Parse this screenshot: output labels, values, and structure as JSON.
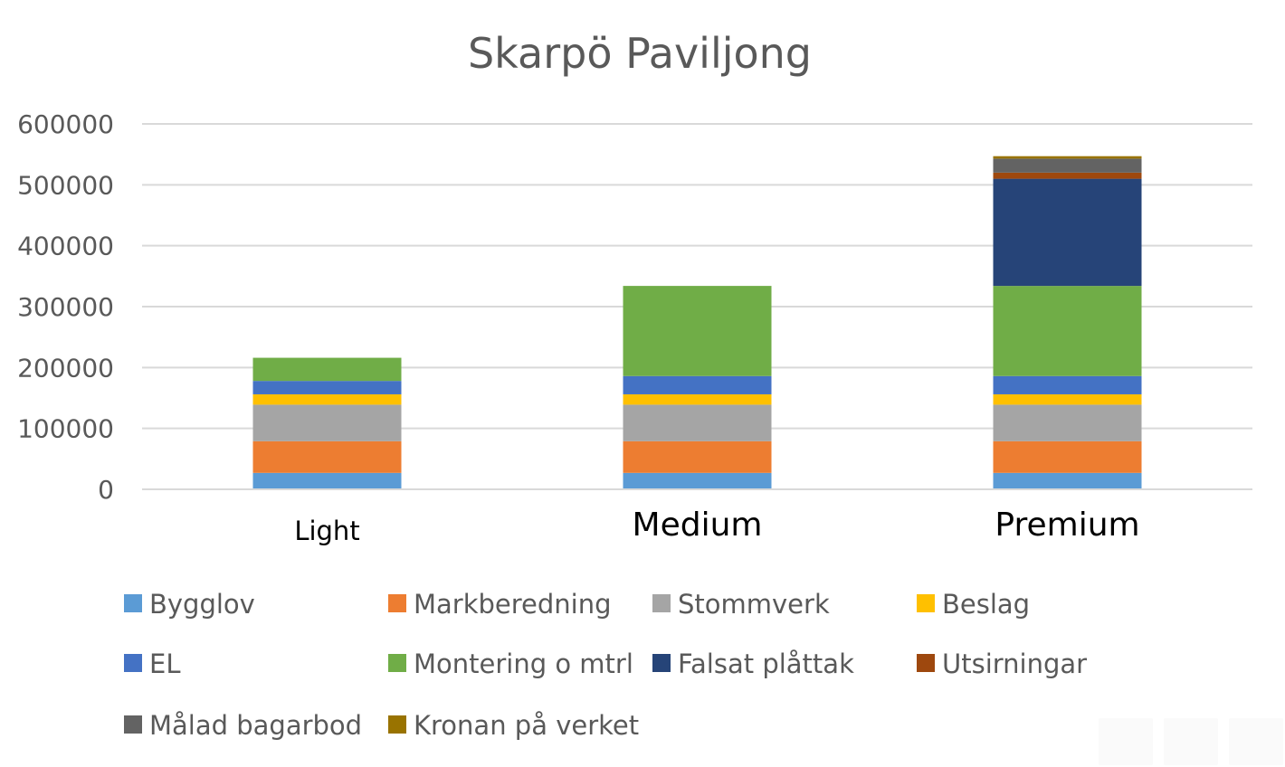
{
  "chart_data": {
    "type": "bar",
    "stacked": true,
    "title": "Skarpö Paviljong",
    "categories": [
      "Light",
      "Medium",
      "Premium"
    ],
    "xlabel": "",
    "ylabel": "",
    "ylim": [
      0,
      600000
    ],
    "yticks": [
      "0",
      "100000",
      "200000",
      "300000",
      "400000",
      "500000",
      "600000"
    ],
    "grid": true,
    "legend_position": "bottom",
    "series": [
      {
        "name": "Bygglov",
        "color": "#5B9BD5",
        "values": [
          27000,
          27000,
          27000
        ]
      },
      {
        "name": "Markberedning",
        "color": "#ED7D31",
        "values": [
          52000,
          52000,
          52000
        ]
      },
      {
        "name": "Stommverk",
        "color": "#A5A5A5",
        "values": [
          60000,
          60000,
          60000
        ]
      },
      {
        "name": "Beslag",
        "color": "#FFC000",
        "values": [
          17000,
          17000,
          17000
        ]
      },
      {
        "name": "EL",
        "color": "#4472C4",
        "values": [
          22000,
          30000,
          30000
        ]
      },
      {
        "name": "Montering o mtrl",
        "color": "#70AD47",
        "values": [
          38000,
          148000,
          148000
        ]
      },
      {
        "name": "Falsat plåttak",
        "color": "#264478",
        "values": [
          0,
          0,
          176000
        ]
      },
      {
        "name": "Utsirningar",
        "color": "#9E480E",
        "values": [
          0,
          0,
          10000
        ]
      },
      {
        "name": "Målad bagarbod",
        "color": "#636363",
        "values": [
          0,
          0,
          23000
        ]
      },
      {
        "name": "Kronan på verket",
        "color": "#997300",
        "values": [
          0,
          0,
          4000
        ]
      }
    ]
  }
}
